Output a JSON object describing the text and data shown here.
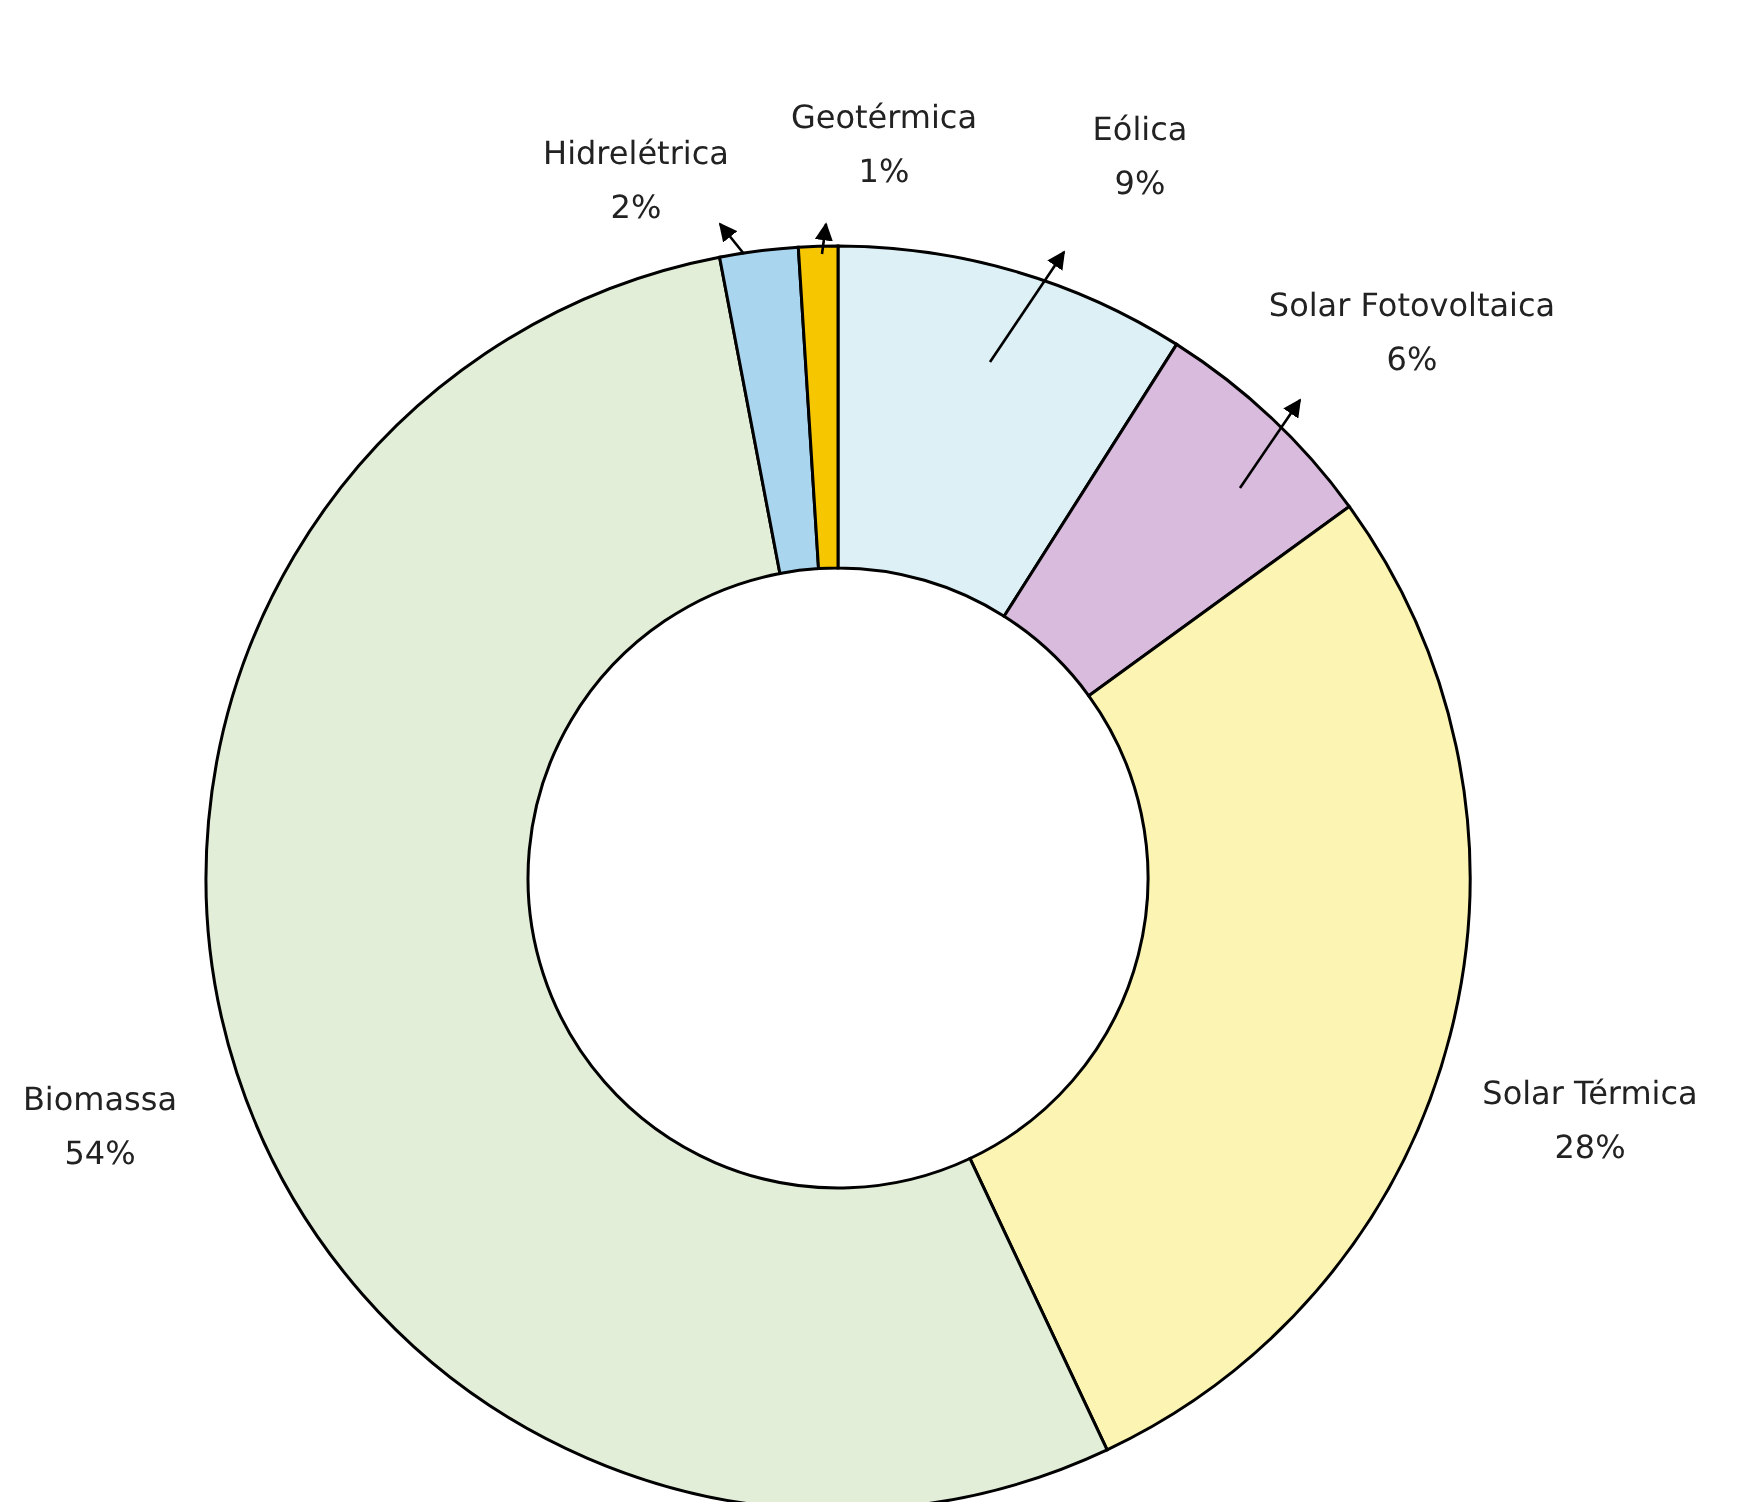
{
  "chart_data": {
    "type": "donut",
    "categories": [
      "Eólica",
      "Solar Fotovoltaica",
      "Solar Térmica",
      "Biomassa",
      "Hidrelétrica",
      "Geotérmica"
    ],
    "values": [
      9,
      6,
      28,
      54,
      2,
      1
    ],
    "colors": [
      "#dcf0f6",
      "#d9bbdd",
      "#fbf4b2",
      "#e2eed8",
      "#a9d5ee",
      "#f6c700"
    ],
    "value_labels": [
      "9%",
      "6%",
      "28%",
      "54%",
      "2%",
      "1%"
    ]
  }
}
